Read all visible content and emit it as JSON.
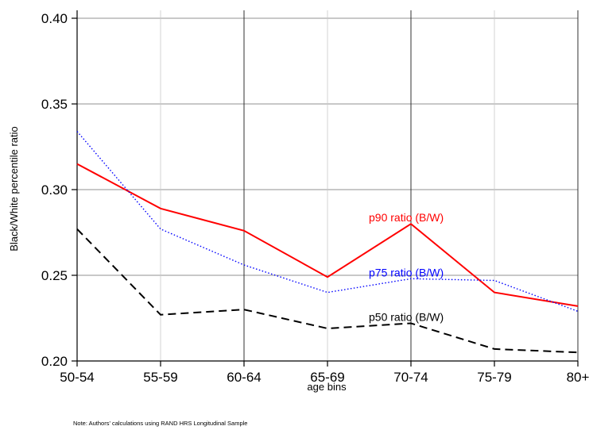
{
  "chart_data": {
    "type": "line",
    "xlabel": "age bins",
    "ylabel": "Black/White percentile ratio",
    "categories": [
      "50-54",
      "55-59",
      "60-64",
      "65-69",
      "70-74",
      "75-79",
      "80+"
    ],
    "ylim": [
      0.2,
      0.4
    ],
    "yticks": [
      "0.20",
      "0.25",
      "0.30",
      "0.35",
      "0.40"
    ],
    "ytick_values": [
      0.2,
      0.25,
      0.3,
      0.35,
      0.4
    ],
    "grid": true,
    "series": [
      {
        "name": "p90 ratio (B/W)",
        "values": [
          0.315,
          0.289,
          0.276,
          0.249,
          0.28,
          0.24,
          0.232
        ],
        "color": "#ff0000",
        "style": "solid"
      },
      {
        "name": "p75 ratio (B/W)",
        "values": [
          0.334,
          0.277,
          0.256,
          0.24,
          0.248,
          0.247,
          0.229
        ],
        "color": "#0000ff",
        "style": "dotted"
      },
      {
        "name": "p50 ratio (B/W)",
        "values": [
          0.277,
          0.227,
          0.23,
          0.219,
          0.222,
          0.207,
          0.205
        ],
        "color": "#000000",
        "style": "dashed"
      }
    ]
  },
  "note": "Note: Authors' calculations using RAND HRS Longitudinal Sample"
}
